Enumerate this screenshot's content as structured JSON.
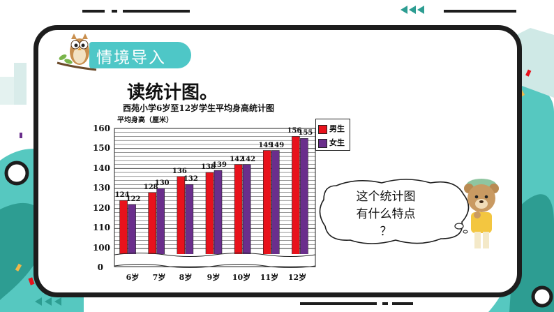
{
  "lesson": {
    "section_title": "情境导入",
    "instruction": "读统计图。"
  },
  "chart_data": {
    "type": "bar",
    "title": "西苑小学6岁至12岁学生平均身高统计图",
    "ylabel": "平均身高（厘米）",
    "categories": [
      "6岁",
      "7岁",
      "8岁",
      "9岁",
      "10岁",
      "11岁",
      "12岁"
    ],
    "series": [
      {
        "name": "男生",
        "values": [
          124,
          128,
          136,
          138,
          142,
          149,
          156
        ]
      },
      {
        "name": "女生",
        "values": [
          122,
          130,
          132,
          139,
          142,
          149,
          155
        ]
      }
    ],
    "y_ticks": [
      "160",
      "150",
      "140",
      "130",
      "120",
      "110",
      "100",
      "0"
    ],
    "ylim": [
      100,
      160
    ],
    "axis_break": true,
    "grid": true,
    "legend": "top-right",
    "colors": {
      "boys": "#e8121c",
      "girls": "#6a2e8c"
    }
  },
  "bubble": {
    "line1": "这个统计图",
    "line2": "有什么特点",
    "line3": "？"
  },
  "colors": {
    "teal": "#4ec7c7",
    "dark": "#1d1d1d",
    "accent": "#2c9d92"
  }
}
